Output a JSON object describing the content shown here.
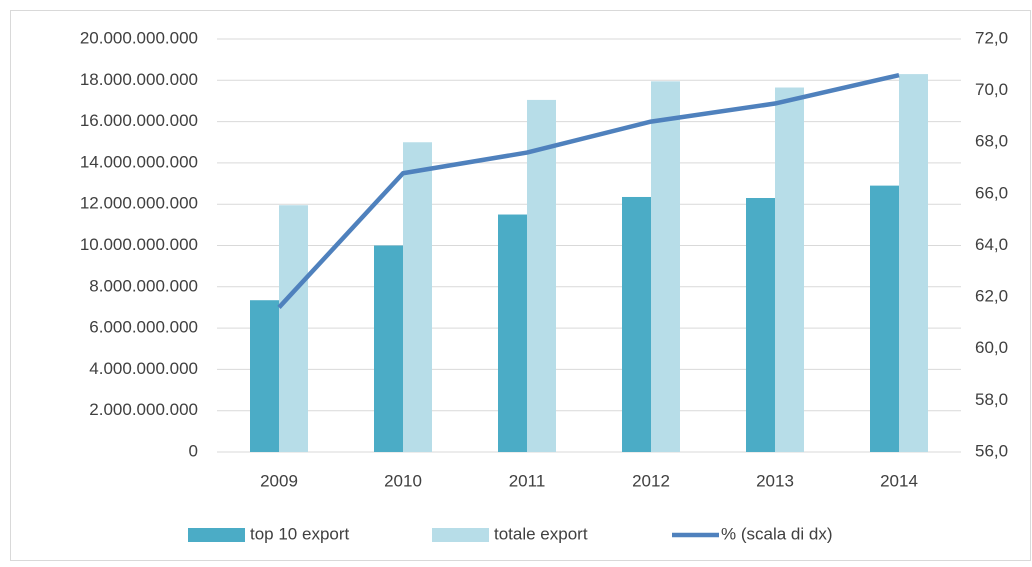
{
  "chart_data": {
    "type": "bar-line",
    "categories": [
      "2009",
      "2010",
      "2011",
      "2012",
      "2013",
      "2014"
    ],
    "series": [
      {
        "name": "top 10 export",
        "type": "bar",
        "color": "#4bacc6",
        "values": [
          7350000000,
          10000000000,
          11500000000,
          12350000000,
          12300000000,
          12900000000
        ]
      },
      {
        "name": "totale export",
        "type": "bar",
        "color": "#b7dde8",
        "values": [
          11950000000,
          15000000000,
          17050000000,
          17950000000,
          17650000000,
          18300000000
        ]
      },
      {
        "name": "% (scala di dx)",
        "type": "line",
        "axis": "y2",
        "color": "#4f81bd",
        "values": [
          61.6,
          66.8,
          67.6,
          68.8,
          69.5,
          70.6
        ]
      }
    ],
    "ylim": [
      0,
      20000000000
    ],
    "yticks": [
      0,
      {
        "value": 2000000000,
        "label": "2.000.000.000"
      },
      {
        "value": 4000000000,
        "label": "4.000.000.000"
      },
      {
        "value": 6000000000,
        "label": "6.000.000.000"
      },
      {
        "value": 8000000000,
        "label": "8.000.000.000"
      },
      {
        "value": 10000000000,
        "label": "10.000.000.000"
      },
      {
        "value": 12000000000,
        "label": "12.000.000.000"
      },
      {
        "value": 14000000000,
        "label": "14.000.000.000"
      },
      {
        "value": 16000000000,
        "label": "16.000.000.000"
      },
      {
        "value": 18000000000,
        "label": "18.000.000.000"
      },
      {
        "value": 20000000000,
        "label": "20.000.000.000"
      }
    ],
    "y2lim": [
      56,
      72
    ],
    "y2ticks": [
      {
        "value": 56,
        "label": "56,0"
      },
      {
        "value": 58,
        "label": "58,0"
      },
      {
        "value": 60,
        "label": "60,0"
      },
      {
        "value": 62,
        "label": "62,0"
      },
      {
        "value": 64,
        "label": "64,0"
      },
      {
        "value": 66,
        "label": "66,0"
      },
      {
        "value": 68,
        "label": "68,0"
      },
      {
        "value": 70,
        "label": "70,0"
      },
      {
        "value": 72,
        "label": "72,0"
      }
    ],
    "grid": true,
    "legend": "bottom"
  }
}
